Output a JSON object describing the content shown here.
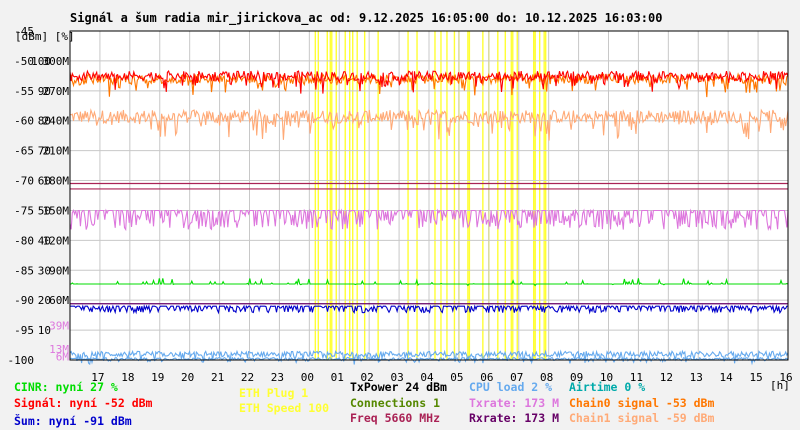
{
  "title": "Signál a šum radia mir_jirickova_ac od: 9.12.2025 16:05:00 do: 10.12.2025 16:03:00",
  "chart_data": {
    "type": "line",
    "title": "Signál a šum radia mir_jirickova_ac od: 9.12.2025 16:05:00 do: 10.12.2025 16:03:00",
    "axis_unit_label": "[dBm] [%]",
    "x_unit_label": "[h]",
    "x_ticks": [
      "17",
      "18",
      "19",
      "20",
      "21",
      "22",
      "23",
      "00",
      "01",
      "02",
      "03",
      "04",
      "05",
      "06",
      "07",
      "08",
      "09",
      "10",
      "11",
      "12",
      "13",
      "14",
      "15",
      "16"
    ],
    "y_ticks_dbm": [
      "-45",
      "-50",
      "-55",
      "-60",
      "-65",
      "-70",
      "-75",
      "-80",
      "-85",
      "-90",
      "-95",
      "-100"
    ],
    "y_ticks_pct": [
      "100",
      "90",
      "80",
      "70",
      "60",
      "50",
      "40",
      "30",
      "20",
      "10"
    ],
    "y_ticks_rate": [
      "300M",
      "270M",
      "240M",
      "210M",
      "180M",
      "150M",
      "120M",
      "90M",
      "60M",
      "39M",
      "13M",
      "6M"
    ],
    "ylim_dbm": [
      -100,
      -45
    ],
    "grid": true,
    "legend_position": "bottom",
    "colors": {
      "cinr": "#00dd00",
      "signal": "#ff0000",
      "noise": "#0000cc",
      "txpower": "#000000",
      "connections": "#558800",
      "freq": "#aa2255",
      "cpu": "#66aaee",
      "txrate": "#dd77dd",
      "rxrate": "#660066",
      "airtime": "#00aaaa",
      "chain0": "#ff7700",
      "chain1": "#ffaa77",
      "eth": "#ffff33"
    },
    "series": [
      {
        "key": "signal",
        "name": "Signál: nyní -52 dBm",
        "level": -52.5
      },
      {
        "key": "chain0",
        "name": "Chain0 signal -53 dBm",
        "level": -53
      },
      {
        "key": "chain1",
        "name": "Chain1 signal -59 dBm",
        "level": -59.3
      },
      {
        "key": "txrate",
        "name": "Txrate: 173 M",
        "level": -75
      },
      {
        "key": "cinr",
        "name": "CINR: nyní 27 %",
        "level": -87.3
      },
      {
        "key": "noise",
        "name": "Šum: nyní -91 dBm",
        "level": -91
      },
      {
        "key": "cpu",
        "name": "CPU load 2 %",
        "level": -99
      }
    ],
    "ref_lines": [
      {
        "key": "freq",
        "level": -70.5
      },
      {
        "key": "freq",
        "level": -71.4
      },
      {
        "key": "rxrate",
        "level": -90.6
      }
    ],
    "eth_marks_hours": [
      8.2,
      8.3,
      8.6,
      8.7,
      8.75,
      8.9,
      9.2,
      9.35,
      9.45,
      9.6,
      9.85,
      10.3,
      11.3,
      11.6,
      12.2,
      12.4,
      12.6,
      12.85,
      13.0,
      13.3,
      13.35,
      13.8,
      14.0,
      14.3,
      14.55,
      14.75,
      14.8,
      14.95,
      15.5,
      15.55,
      15.7,
      15.85,
      15.9
    ]
  },
  "legend": {
    "cinr": "CINR: nyní 27 %",
    "signal": "Signál: nyní -52 dBm",
    "noise": "Šum: nyní -91 dBm",
    "eth_plug": "ETH Plug 1",
    "eth_speed": "ETH Speed 100",
    "txpower": "TxPower 24 dBm",
    "connections": "Connections 1",
    "freq": "Freq 5660 MHz",
    "cpu": "CPU load 2 %",
    "txrate": "Txrate: 173 M",
    "rxrate": "Rxrate: 173 M",
    "airtime": "Airtime 0 %",
    "chain0": "Chain0 signal -53 dBm",
    "chain1": "Chain1 signal -59 dBm"
  }
}
